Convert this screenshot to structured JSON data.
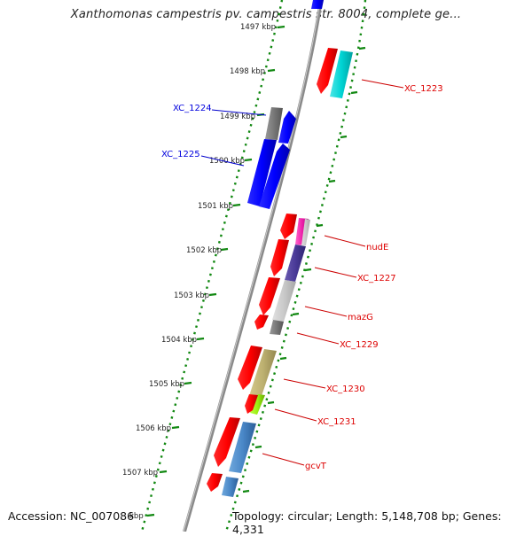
{
  "title": "Xanthomonas campestris pv. campestris str. 8004, complete ge...",
  "footer": {
    "accession": "Accession: NC_007086",
    "topology": "Topology: circular; Length: 5,148,708 bp; Genes: 4,331"
  },
  "scale_labels": [
    {
      "id": "1497",
      "text": "1497 kbp"
    },
    {
      "id": "1498",
      "text": "1498 kbp"
    },
    {
      "id": "1499",
      "text": "1499 kbp"
    },
    {
      "id": "1500",
      "text": "1500 kbp"
    },
    {
      "id": "1501",
      "text": "1501 kbp"
    },
    {
      "id": "1502",
      "text": "1502 kbp"
    },
    {
      "id": "1503",
      "text": "1503 kbp"
    },
    {
      "id": "1504",
      "text": "1504 kbp"
    },
    {
      "id": "1505",
      "text": "1505 kbp"
    },
    {
      "id": "1506",
      "text": "1506 kbp"
    },
    {
      "id": "1507",
      "text": "1507 kbp"
    },
    {
      "id": "1508",
      "text": "kbp"
    }
  ],
  "gene_labels": {
    "xc1224": "XC_1224",
    "xc1225": "XC_1225",
    "xc1223": "XC_1223",
    "nude": "nudE",
    "xc1227": "XC_1227",
    "mazg": "mazG",
    "xc1229": "XC_1229",
    "xc1230": "XC_1230",
    "xc1231": "XC_1231",
    "gcvt": "gcvT"
  },
  "colors": {
    "backbone": "#888888",
    "scale_dots": "#118811",
    "reverse_gene": "#ee0000",
    "forward_gene": "#0000ee"
  }
}
